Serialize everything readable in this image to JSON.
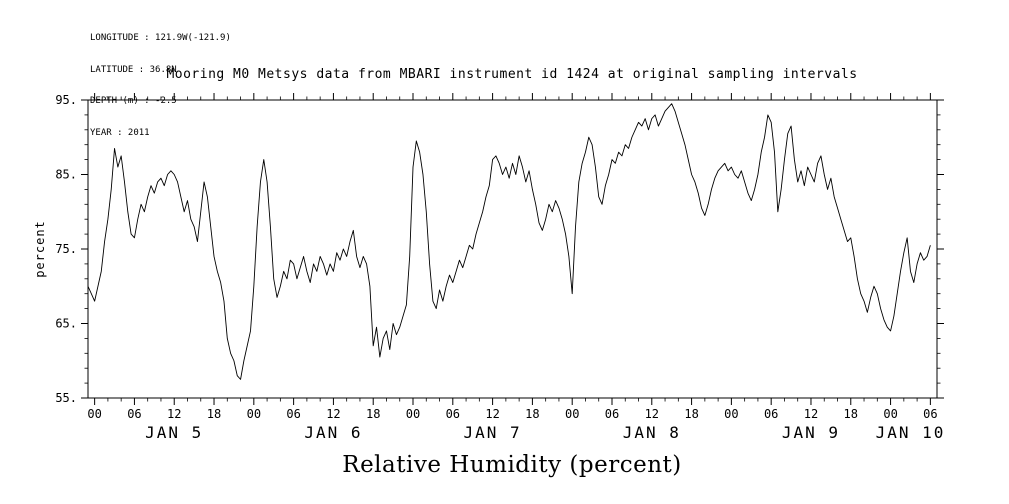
{
  "meta": {
    "longitude": "LONGITUDE : 121.9W(-121.9)",
    "latitude": "LATITUDE : 36.8N",
    "depth": "DEPTH (m) : -2.5",
    "year": "YEAR : 2011"
  },
  "title": "Mooring M0 Metsys data from MBARI instrument id 1424 at original sampling intervals",
  "bottom_label": "Relative Humidity (percent)",
  "chart_data": {
    "type": "line",
    "title": "Mooring M0 Metsys data from MBARI instrument id 1424 at original sampling intervals",
    "xlabel": "Relative Humidity (percent)",
    "ylabel": "percent",
    "line_color": "#000000",
    "background": "#ffffff",
    "grid": false,
    "legend": "none",
    "ylim": [
      55,
      95
    ],
    "xlim_hours": [
      -1,
      127
    ],
    "y_ticks": [
      55,
      65,
      75,
      85,
      95
    ],
    "y_tick_labels": [
      "55.",
      "65.",
      "75.",
      "85.",
      "95."
    ],
    "y_minor_step": 2,
    "x_minor_step": 2,
    "x_ticks": [
      {
        "h": 0,
        "label": "00"
      },
      {
        "h": 6,
        "label": "06"
      },
      {
        "h": 12,
        "label": "12"
      },
      {
        "h": 18,
        "label": "18"
      },
      {
        "h": 24,
        "label": "00"
      },
      {
        "h": 30,
        "label": "06"
      },
      {
        "h": 36,
        "label": "12"
      },
      {
        "h": 42,
        "label": "18"
      },
      {
        "h": 48,
        "label": "00"
      },
      {
        "h": 54,
        "label": "06"
      },
      {
        "h": 60,
        "label": "12"
      },
      {
        "h": 66,
        "label": "18"
      },
      {
        "h": 72,
        "label": "00"
      },
      {
        "h": 78,
        "label": "06"
      },
      {
        "h": 84,
        "label": "12"
      },
      {
        "h": 90,
        "label": "18"
      },
      {
        "h": 96,
        "label": "00"
      },
      {
        "h": 102,
        "label": "06"
      },
      {
        "h": 108,
        "label": "12"
      },
      {
        "h": 114,
        "label": "18"
      },
      {
        "h": 120,
        "label": "00"
      },
      {
        "h": 126,
        "label": "06"
      }
    ],
    "day_labels": [
      {
        "label": "JAN 5",
        "hour": 12
      },
      {
        "label": "JAN 6",
        "hour": 36
      },
      {
        "label": "JAN 7",
        "hour": 60
      },
      {
        "label": "JAN 8",
        "hour": 84
      },
      {
        "label": "JAN 9",
        "hour": 108
      },
      {
        "label": "JAN 10",
        "hour": 123
      }
    ],
    "series": [
      {
        "name": "relative_humidity",
        "units": "percent",
        "x_start_hour": -1,
        "x_step_hours": 0.5,
        "values": [
          70,
          69,
          68,
          70,
          72,
          76,
          79,
          83,
          88.5,
          86,
          87.5,
          84,
          80,
          77,
          76.5,
          79,
          81,
          80,
          82,
          83.5,
          82.5,
          84,
          84.5,
          83.5,
          85,
          85.5,
          85,
          84,
          82,
          80,
          81.5,
          79,
          78,
          76,
          80,
          84,
          82,
          78,
          74,
          72,
          70.5,
          68,
          63,
          61,
          60,
          58,
          57.5,
          60,
          62,
          64,
          70,
          78,
          84,
          87,
          84,
          78,
          71,
          68.5,
          70,
          72,
          71,
          73.5,
          73,
          71,
          72.5,
          74,
          72,
          70.5,
          73,
          72,
          74,
          73,
          71.5,
          73,
          72,
          74.5,
          73.5,
          75,
          74,
          76,
          77.5,
          74,
          72.5,
          74,
          73,
          70,
          62,
          64.5,
          60.5,
          63,
          64,
          61.5,
          65,
          63.5,
          64.5,
          66,
          67.5,
          74,
          86,
          89.5,
          88,
          85,
          80,
          73,
          68,
          67,
          69.5,
          68,
          70,
          71.5,
          70.5,
          72,
          73.5,
          72.5,
          74,
          75.5,
          75,
          77,
          78.5,
          80,
          82,
          83.5,
          87,
          87.5,
          86.5,
          85,
          86,
          84.5,
          86.5,
          85,
          87.5,
          86,
          84,
          85.5,
          83,
          81,
          78.5,
          77.5,
          79,
          81,
          80,
          81.5,
          80.5,
          79,
          77,
          74,
          69,
          78,
          84,
          86.5,
          88,
          90,
          89,
          86,
          82,
          81,
          83.5,
          85,
          87,
          86.5,
          88,
          87.5,
          89,
          88.5,
          90,
          91,
          92,
          91.5,
          92.5,
          91,
          92.5,
          93,
          91.5,
          92.5,
          93.5,
          94,
          94.5,
          93.5,
          92,
          90.5,
          89,
          87,
          85,
          84,
          82.5,
          80.5,
          79.5,
          81,
          83,
          84.5,
          85.5,
          86,
          86.5,
          85.5,
          86,
          85,
          84.5,
          85.5,
          84,
          82.5,
          81.5,
          83,
          85,
          88,
          90,
          93,
          92,
          88,
          80,
          83,
          87,
          90.5,
          91.5,
          87,
          84,
          85.5,
          83.5,
          86,
          85,
          84,
          86.5,
          87.5,
          85,
          83,
          84.5,
          82,
          80.5,
          79,
          77.5,
          76,
          76.5,
          74,
          71,
          69,
          68,
          66.5,
          68.5,
          70,
          69,
          67,
          65.5,
          64.5,
          64,
          66,
          69,
          72,
          74.5,
          76.5,
          72,
          70.5,
          73,
          74.5,
          73.5,
          74,
          75.5
        ]
      }
    ]
  }
}
